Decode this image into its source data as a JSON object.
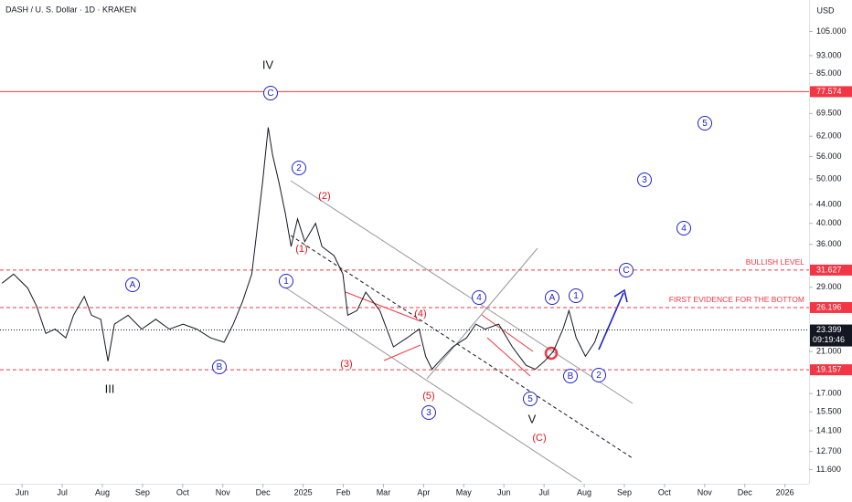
{
  "chart_data": {
    "type": "line",
    "title": "DASH / U. S. Dollar · 1D · KRAKEN",
    "currency": "USD",
    "log_scale": true,
    "color": "#131722",
    "x": [
      -0.5,
      -0.21,
      0.14,
      0.36,
      0.59,
      0.82,
      1.09,
      1.28,
      1.55,
      1.73,
      1.96,
      2.14,
      2.3,
      2.64,
      2.98,
      3.33,
      3.67,
      4.01,
      4.35,
      4.69,
      5.03,
      5.26,
      5.49,
      5.72,
      5.83,
      5.99,
      6.13,
      6.24,
      6.4,
      6.56,
      6.7,
      6.86,
      7.04,
      7.31,
      7.47,
      7.77,
      7.99,
      8.11,
      8.34,
      8.56,
      8.91,
      9.25,
      9.59,
      9.89,
      10.05,
      10.21,
      10.39,
      10.73,
      11.07,
      11.3,
      11.53,
      11.87,
      12.21,
      12.55,
      12.78,
      13.01,
      13.23,
      13.47,
      13.62,
      13.8,
      14.03,
      14.26,
      14.37
    ],
    "values": [
      29.6,
      31.0,
      28.9,
      26.4,
      23.0,
      23.5,
      22.5,
      25.2,
      27.7,
      25.2,
      24.7,
      20.0,
      24.1,
      25.2,
      23.5,
      24.7,
      23.5,
      24.1,
      23.5,
      22.5,
      22.0,
      24.1,
      27.0,
      31.0,
      37.3,
      49.1,
      64.8,
      56.4,
      49.1,
      41.9,
      35.6,
      40.9,
      36.5,
      40.0,
      35.6,
      34.0,
      31.0,
      25.2,
      25.8,
      28.3,
      25.8,
      21.5,
      22.5,
      23.5,
      20.5,
      19.2,
      20.0,
      21.5,
      22.5,
      24.1,
      23.5,
      24.1,
      21.5,
      19.6,
      19.2,
      20.0,
      21.0,
      23.5,
      25.8,
      22.5,
      20.5,
      22.0,
      23.399
    ],
    "xlim": [
      -0.55,
      19.6
    ],
    "xticks": [
      {
        "value": 0,
        "label": "Jun"
      },
      {
        "value": 1,
        "label": "Jul"
      },
      {
        "value": 2,
        "label": "Aug"
      },
      {
        "value": 3,
        "label": "Sep"
      },
      {
        "value": 4,
        "label": "Oct"
      },
      {
        "value": 5,
        "label": "Nov"
      },
      {
        "value": 6,
        "label": "Dec"
      },
      {
        "value": 7,
        "label": "2025"
      },
      {
        "value": 8,
        "label": "Feb"
      },
      {
        "value": 9,
        "label": "Mar"
      },
      {
        "value": 10,
        "label": "Apr"
      },
      {
        "value": 11,
        "label": "May"
      },
      {
        "value": 12,
        "label": "Jun"
      },
      {
        "value": 13,
        "label": "Jul"
      },
      {
        "value": 14,
        "label": "Aug"
      },
      {
        "value": 15,
        "label": "Sep"
      },
      {
        "value": 16,
        "label": "Oct"
      },
      {
        "value": 17,
        "label": "Nov"
      },
      {
        "value": 18,
        "label": "Dec"
      },
      {
        "value": 19,
        "label": "2026"
      }
    ],
    "ylim": [
      10.8,
      123
    ],
    "yticks": [
      {
        "value": 105,
        "label": "105.000"
      },
      {
        "value": 93,
        "label": "93.000"
      },
      {
        "value": 85,
        "label": "85.000"
      },
      {
        "value": 69.5,
        "label": "69.500"
      },
      {
        "value": 62,
        "label": "62.000"
      },
      {
        "value": 56,
        "label": "56.000"
      },
      {
        "value": 50,
        "label": "50.000"
      },
      {
        "value": 44,
        "label": "44.000"
      },
      {
        "value": 40,
        "label": "40.000"
      },
      {
        "value": 36,
        "label": "36.000"
      },
      {
        "value": 29,
        "label": "29.000"
      },
      {
        "value": 21,
        "label": "21.000"
      },
      {
        "value": 17,
        "label": "17.000"
      },
      {
        "value": 15.5,
        "label": "15.500"
      },
      {
        "value": 14.1,
        "label": "14.100"
      },
      {
        "value": 12.7,
        "label": "12.700"
      },
      {
        "value": 11.6,
        "label": "11.600"
      }
    ],
    "levels": [
      {
        "value": 77.574,
        "color": "#f23645",
        "dash": false
      },
      {
        "value": 31.627,
        "color": "#f23645",
        "dash": true,
        "text": "BULLISH LEVEL"
      },
      {
        "value": 26.196,
        "color": "#f23645",
        "dash": true,
        "text": "FIRST EVIDENCE FOR THE BOTTOM"
      },
      {
        "value": 23.399,
        "color": "#131722",
        "dash": true,
        "countdown": "09:19:46"
      },
      {
        "value": 19.157,
        "color": "#f23645",
        "dash": true
      }
    ],
    "annotations": [
      {
        "text": "IV",
        "style": "roman"
      },
      {
        "text": "C",
        "style": "circle"
      },
      {
        "text": "2",
        "style": "circle"
      },
      {
        "text": "(2)",
        "style": "red"
      },
      {
        "text": "(1)",
        "style": "red"
      },
      {
        "text": "1",
        "style": "circle"
      },
      {
        "text": "(3)",
        "style": "red"
      },
      {
        "text": "(4)",
        "style": "red"
      },
      {
        "text": "(5)",
        "style": "red"
      },
      {
        "text": "3",
        "style": "circle"
      },
      {
        "text": "4",
        "style": "circle"
      },
      {
        "text": "5",
        "style": "circle"
      },
      {
        "text": "V",
        "style": "roman"
      },
      {
        "text": "(C)",
        "style": "red"
      },
      {
        "text": "A",
        "style": "circle"
      },
      {
        "text": "1",
        "style": "circle"
      },
      {
        "text": "B",
        "style": "circle"
      },
      {
        "text": "2",
        "style": "circle"
      },
      {
        "text": "C",
        "style": "circle"
      },
      {
        "text": "3",
        "style": "circle"
      },
      {
        "text": "4",
        "style": "circle"
      },
      {
        "text": "5",
        "style": "circle"
      },
      {
        "text": "A",
        "style": "circle"
      },
      {
        "text": "B",
        "style": "circle"
      },
      {
        "text": "III",
        "style": "roman"
      }
    ]
  }
}
